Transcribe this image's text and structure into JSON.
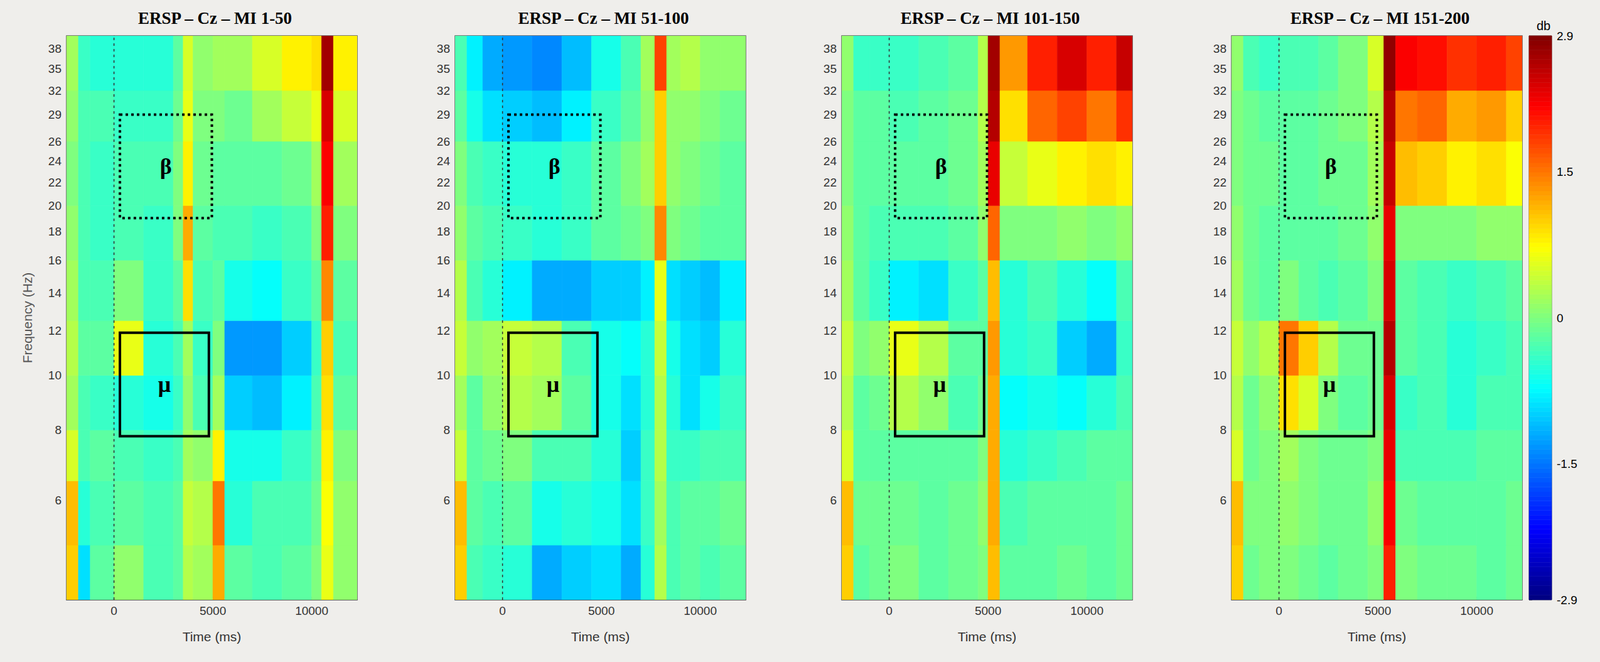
{
  "chart_data": [
    {
      "type": "heatmap",
      "title": "ERSP – Cz – MI 1-50",
      "x_label": "Time (ms)",
      "y_label": "Frequency (Hz)",
      "xlim": [
        -2400,
        12300
      ],
      "xticks": [
        0,
        5000,
        10000
      ],
      "ylim": [
        4,
        40
      ],
      "yticks": [
        6,
        8,
        10,
        12,
        14,
        16,
        18,
        20,
        22,
        24,
        26,
        29,
        32,
        35,
        38
      ],
      "log": "y",
      "time_edges": [
        -2400,
        -1800,
        -1200,
        0,
        1500,
        3000,
        3500,
        4000,
        5000,
        5600,
        7000,
        8500,
        10000,
        10500,
        11100,
        12300
      ],
      "freq_edges": [
        4,
        5,
        6.5,
        8,
        10,
        12.5,
        16,
        20,
        26,
        32,
        40
      ],
      "values": [
        [
          1.0,
          -0.9,
          -0.2,
          0.1,
          -0.3,
          -0.2,
          0.3,
          0.2,
          1.2,
          -0.2,
          -0.3,
          -0.2,
          0.0,
          0.6,
          0.1
        ],
        [
          1.1,
          -0.5,
          -0.3,
          -0.2,
          -0.3,
          -0.2,
          0.4,
          0.3,
          1.5,
          -0.5,
          -0.3,
          -0.3,
          -0.1,
          0.7,
          0.1
        ],
        [
          0.5,
          -0.3,
          -0.2,
          -0.3,
          -0.4,
          -0.3,
          0.2,
          0.1,
          0.8,
          -0.6,
          -0.6,
          -0.4,
          -0.2,
          0.8,
          0.0
        ],
        [
          0.2,
          -0.3,
          -0.4,
          -0.5,
          -0.6,
          -0.4,
          0.1,
          -0.3,
          0.2,
          -1.0,
          -1.1,
          -0.8,
          -0.3,
          0.9,
          -0.2
        ],
        [
          0.3,
          -0.2,
          -0.2,
          0.6,
          -0.5,
          -0.3,
          0.2,
          -0.4,
          0.0,
          -1.3,
          -1.3,
          -1.0,
          -0.4,
          1.0,
          -0.3
        ],
        [
          0.2,
          -0.3,
          -0.3,
          0.0,
          -0.4,
          -0.2,
          0.9,
          -0.3,
          -0.2,
          -0.6,
          -0.7,
          -0.4,
          -0.2,
          1.4,
          -0.2
        ],
        [
          0.1,
          -0.3,
          -0.4,
          -0.3,
          -0.4,
          0.0,
          1.2,
          -0.2,
          -0.3,
          -0.3,
          -0.4,
          -0.3,
          0.0,
          2.0,
          0.0
        ],
        [
          0.0,
          -0.3,
          -0.4,
          -0.3,
          -0.3,
          0.0,
          0.8,
          -0.1,
          -0.2,
          -0.2,
          -0.2,
          -0.1,
          0.2,
          2.2,
          0.2
        ],
        [
          0.1,
          -0.3,
          -0.3,
          -0.4,
          -0.4,
          -0.1,
          0.6,
          0.0,
          0.0,
          -0.1,
          0.2,
          0.4,
          0.6,
          2.4,
          0.5
        ],
        [
          0.2,
          -0.4,
          -0.5,
          -0.5,
          -0.5,
          -0.2,
          0.5,
          0.1,
          0.2,
          0.2,
          0.5,
          0.8,
          0.9,
          2.7,
          0.8
        ]
      ],
      "boxes": [
        {
          "label": "β",
          "x": [
            300,
            4950
          ],
          "y": [
            19,
            29
          ],
          "line_style": "dotted"
        },
        {
          "label": "μ",
          "x": [
            300,
            4800
          ],
          "y": [
            7.8,
            11.9
          ],
          "line_style": "solid"
        }
      ],
      "onset_line": {
        "x": 0,
        "line_style": "dotted"
      }
    },
    {
      "type": "heatmap",
      "title": "ERSP – Cz – MI 51-100",
      "x_label": "Time (ms)",
      "xlim": [
        -2400,
        12300
      ],
      "xticks": [
        0,
        5000,
        10000
      ],
      "ylim": [
        4,
        40
      ],
      "yticks": [
        6,
        8,
        10,
        12,
        14,
        16,
        18,
        20,
        22,
        24,
        26,
        29,
        32,
        35,
        38
      ],
      "log": "y",
      "time_edges": [
        -2400,
        -1800,
        -1000,
        0,
        1500,
        3000,
        4500,
        6000,
        7000,
        7700,
        8300,
        9000,
        10000,
        11000,
        12300
      ],
      "freq_edges": [
        4,
        5,
        6.5,
        8,
        10,
        12.5,
        16,
        20,
        26,
        32,
        40
      ],
      "values": [
        [
          1.0,
          -0.3,
          -0.4,
          -0.5,
          -1.2,
          -1.0,
          -0.9,
          -1.2,
          -0.5,
          0.3,
          -0.3,
          -0.2,
          -0.3,
          -0.2
        ],
        [
          1.1,
          -0.2,
          -0.3,
          -0.2,
          -0.6,
          -0.5,
          -0.6,
          -0.9,
          -0.4,
          0.2,
          -0.3,
          -0.2,
          -0.2,
          -0.1
        ],
        [
          0.4,
          -0.2,
          -0.1,
          0.0,
          -0.3,
          -0.3,
          -0.5,
          -1.0,
          -0.4,
          0.3,
          -0.4,
          -0.4,
          -0.3,
          -0.3
        ],
        [
          0.2,
          -0.2,
          0.1,
          0.3,
          0.2,
          -0.2,
          -0.6,
          -0.9,
          -0.5,
          0.3,
          -0.5,
          -0.9,
          -0.6,
          -0.4
        ],
        [
          0.4,
          0.1,
          0.2,
          0.4,
          0.3,
          -0.3,
          -0.6,
          -0.7,
          -0.5,
          0.4,
          -0.6,
          -0.9,
          -1.0,
          -0.5
        ],
        [
          0.3,
          -0.3,
          -0.5,
          -0.8,
          -1.2,
          -1.2,
          -1.0,
          -1.0,
          -0.8,
          0.6,
          -0.9,
          -1.0,
          -1.1,
          -0.8
        ],
        [
          0.1,
          -0.2,
          -0.3,
          -0.4,
          -0.5,
          -0.4,
          -0.2,
          -0.1,
          0.0,
          1.4,
          0.0,
          -0.1,
          -0.2,
          -0.2
        ],
        [
          0.0,
          -0.3,
          -0.4,
          -0.5,
          -0.5,
          -0.4,
          -0.2,
          0.0,
          0.2,
          1.0,
          0.1,
          0.0,
          -0.1,
          -0.2
        ],
        [
          -0.2,
          -0.6,
          -0.9,
          -1.0,
          -1.1,
          -0.8,
          -0.4,
          -0.2,
          0.1,
          1.0,
          0.1,
          0.1,
          0.0,
          -0.1
        ],
        [
          -0.3,
          -0.8,
          -1.2,
          -1.3,
          -1.4,
          -1.1,
          -0.6,
          -0.3,
          0.2,
          1.8,
          0.2,
          0.3,
          0.1,
          0.1
        ]
      ],
      "boxes": [
        {
          "label": "β",
          "x": [
            300,
            4950
          ],
          "y": [
            19,
            29
          ],
          "line_style": "dotted"
        },
        {
          "label": "μ",
          "x": [
            300,
            4800
          ],
          "y": [
            7.8,
            11.9
          ],
          "line_style": "solid"
        }
      ],
      "onset_line": {
        "x": 0,
        "line_style": "dotted"
      }
    },
    {
      "type": "heatmap",
      "title": "ERSP – Cz – MI 101-150",
      "x_label": "Time (ms)",
      "xlim": [
        -2400,
        12300
      ],
      "xticks": [
        0,
        5000,
        10000
      ],
      "ylim": [
        4,
        40
      ],
      "yticks": [
        6,
        8,
        10,
        12,
        14,
        16,
        18,
        20,
        22,
        24,
        26,
        29,
        32,
        35,
        38
      ],
      "log": "y",
      "time_edges": [
        -2400,
        -1800,
        -1000,
        0,
        1500,
        3000,
        4500,
        5000,
        5600,
        7000,
        8500,
        10000,
        11500,
        12300
      ],
      "freq_edges": [
        4,
        5,
        6.5,
        8,
        10,
        12.5,
        16,
        20,
        26,
        32,
        40
      ],
      "values": [
        [
          1.0,
          -0.2,
          -0.1,
          0.0,
          -0.2,
          -0.1,
          0.0,
          1.1,
          -0.2,
          -0.2,
          -0.1,
          -0.2,
          -0.1
        ],
        [
          1.1,
          -0.1,
          -0.1,
          -0.1,
          -0.2,
          -0.1,
          0.1,
          1.2,
          -0.3,
          -0.2,
          -0.2,
          -0.2,
          -0.1
        ],
        [
          0.5,
          -0.2,
          -0.2,
          -0.2,
          -0.2,
          -0.2,
          0.0,
          1.2,
          -0.5,
          -0.4,
          -0.3,
          -0.2,
          -0.2
        ],
        [
          0.3,
          -0.2,
          -0.1,
          0.3,
          0.1,
          -0.3,
          -0.1,
          1.2,
          -0.7,
          -0.6,
          -0.7,
          -0.5,
          -0.3
        ],
        [
          0.4,
          0.0,
          0.1,
          0.6,
          0.3,
          -0.2,
          -0.2,
          1.3,
          -0.5,
          -0.4,
          -1.0,
          -1.2,
          -0.4
        ],
        [
          0.2,
          -0.2,
          -0.4,
          -0.8,
          -0.9,
          -0.4,
          -0.2,
          1.1,
          -0.5,
          -0.3,
          -0.5,
          -0.7,
          -0.3
        ],
        [
          0.1,
          -0.2,
          -0.3,
          -0.3,
          -0.3,
          -0.2,
          0.1,
          1.6,
          0.0,
          0.0,
          0.1,
          0.0,
          0.1
        ],
        [
          0.0,
          -0.2,
          -0.2,
          -0.2,
          -0.2,
          -0.1,
          0.2,
          2.3,
          0.4,
          0.6,
          0.8,
          0.9,
          0.8
        ],
        [
          0.0,
          -0.2,
          -0.2,
          -0.3,
          -0.2,
          -0.1,
          0.3,
          2.6,
          0.9,
          1.6,
          1.8,
          1.5,
          1.9
        ],
        [
          0.1,
          -0.4,
          -0.4,
          -0.4,
          -0.3,
          -0.2,
          0.3,
          2.7,
          1.3,
          2.0,
          2.4,
          2.0,
          2.5
        ]
      ],
      "boxes": [
        {
          "label": "β",
          "x": [
            300,
            4950
          ],
          "y": [
            19,
            29
          ],
          "line_style": "dotted"
        },
        {
          "label": "μ",
          "x": [
            300,
            4800
          ],
          "y": [
            7.8,
            11.9
          ],
          "line_style": "solid"
        }
      ],
      "onset_line": {
        "x": 0,
        "line_style": "dotted"
      }
    },
    {
      "type": "heatmap",
      "title": "ERSP – Cz – MI 151-200",
      "x_label": "Time (ms)",
      "xlim": [
        -2400,
        12300
      ],
      "xticks": [
        0,
        5000,
        10000
      ],
      "ylim": [
        4,
        40
      ],
      "yticks": [
        6,
        8,
        10,
        12,
        14,
        16,
        18,
        20,
        22,
        24,
        26,
        29,
        32,
        35,
        38
      ],
      "log": "y",
      "time_edges": [
        -2400,
        -1800,
        -1000,
        0,
        1000,
        2000,
        3000,
        4500,
        5300,
        5900,
        7000,
        8500,
        10000,
        11500,
        12300
      ],
      "freq_edges": [
        4,
        5,
        6.5,
        8,
        10,
        12.5,
        16,
        20,
        26,
        32,
        40
      ],
      "values": [
        [
          1.0,
          -0.1,
          0.0,
          0.0,
          -0.1,
          -0.2,
          -0.1,
          0.0,
          2.0,
          0.0,
          -0.1,
          -0.1,
          -0.2,
          -0.1
        ],
        [
          1.1,
          0.0,
          0.0,
          0.1,
          0.0,
          -0.1,
          -0.1,
          0.1,
          2.2,
          -0.1,
          -0.2,
          -0.2,
          -0.2,
          -0.1
        ],
        [
          0.5,
          -0.1,
          0.0,
          0.2,
          0.0,
          -0.1,
          -0.1,
          0.0,
          2.3,
          -0.3,
          -0.3,
          -0.3,
          -0.2,
          -0.2
        ],
        [
          0.3,
          -0.1,
          0.1,
          0.9,
          0.5,
          0.0,
          -0.2,
          -0.1,
          2.4,
          -0.4,
          -0.3,
          -0.5,
          -0.3,
          -0.3
        ],
        [
          0.4,
          0.1,
          0.3,
          1.5,
          1.0,
          0.3,
          -0.1,
          -0.1,
          2.6,
          -0.2,
          -0.3,
          -0.5,
          -0.4,
          -0.3
        ],
        [
          0.2,
          -0.1,
          -0.2,
          0.0,
          -0.2,
          -0.3,
          -0.2,
          0.0,
          2.4,
          -0.2,
          -0.3,
          -0.4,
          -0.3,
          -0.2
        ],
        [
          0.1,
          -0.1,
          -0.2,
          -0.2,
          -0.2,
          -0.2,
          -0.1,
          0.1,
          2.3,
          0.0,
          0.0,
          0.0,
          0.1,
          0.1
        ],
        [
          0.0,
          -0.1,
          -0.1,
          -0.2,
          -0.2,
          -0.1,
          -0.1,
          0.2,
          2.5,
          1.1,
          1.0,
          0.8,
          0.9,
          0.7
        ],
        [
          0.0,
          -0.1,
          -0.2,
          -0.2,
          -0.2,
          -0.1,
          0.0,
          0.3,
          2.6,
          1.5,
          1.6,
          1.2,
          1.3,
          1.0
        ],
        [
          0.1,
          -0.3,
          -0.4,
          -0.3,
          -0.3,
          -0.2,
          0.0,
          0.5,
          2.8,
          2.2,
          2.1,
          1.9,
          2.0,
          1.8
        ]
      ],
      "boxes": [
        {
          "label": "β",
          "x": [
            300,
            4950
          ],
          "y": [
            19,
            29
          ],
          "line_style": "dotted"
        },
        {
          "label": "μ",
          "x": [
            300,
            4800
          ],
          "y": [
            7.8,
            11.9
          ],
          "line_style": "solid"
        }
      ],
      "onset_line": {
        "x": 0,
        "line_style": "dotted"
      }
    }
  ],
  "colorbar": {
    "label": "db",
    "range": [
      -2.9,
      2.9
    ],
    "ticks": [
      2.9,
      1.5,
      0,
      -1.5,
      -2.9
    ]
  }
}
